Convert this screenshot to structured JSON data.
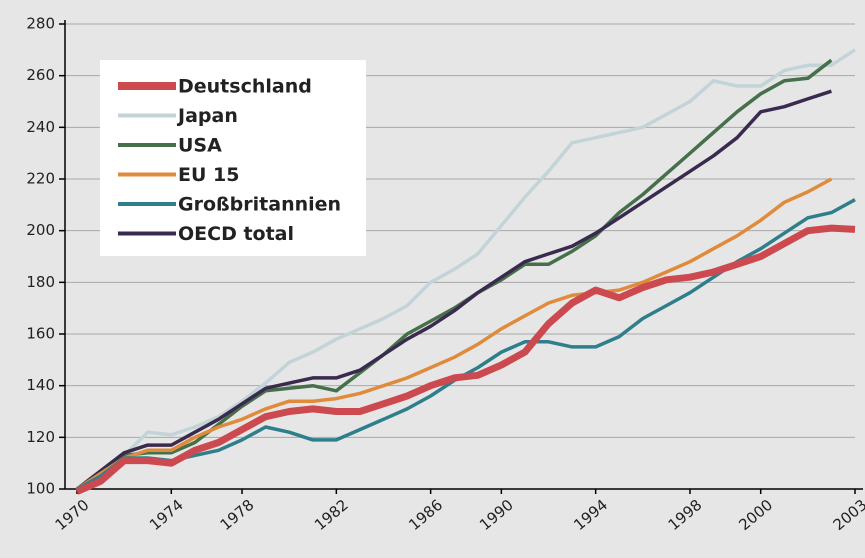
{
  "chart_data": {
    "type": "line",
    "categories": [
      "1970",
      null,
      null,
      null,
      "1974",
      null,
      null,
      "1978",
      null,
      null,
      null,
      "1982",
      null,
      null,
      null,
      "1986",
      null,
      null,
      "1990",
      null,
      null,
      null,
      "1994",
      null,
      null,
      null,
      "1998",
      null,
      null,
      "2000",
      null,
      null,
      null,
      "2003"
    ],
    "ylim": [
      100,
      280
    ],
    "yticks": [
      100,
      120,
      140,
      160,
      180,
      200,
      220,
      240,
      260,
      280
    ],
    "grid": true,
    "legend": "upper left",
    "series": [
      {
        "name": "Deutschland",
        "color": "#cc4a4f",
        "values": [
          99,
          103,
          111,
          111,
          110,
          115,
          118,
          123,
          128,
          130,
          131,
          130,
          130,
          133,
          136,
          140,
          143,
          144,
          148,
          153,
          164,
          172,
          177,
          174,
          178,
          181,
          182,
          184,
          187,
          190,
          195,
          200,
          201,
          200.5
        ]
      },
      {
        "name": "Japan",
        "color": "#c3d4d8",
        "values": [
          100,
          106,
          113,
          122,
          121,
          124,
          128,
          134,
          141,
          149,
          153,
          158,
          162,
          166,
          171,
          180,
          185,
          191,
          202,
          213,
          223,
          234,
          236,
          238,
          240,
          245,
          250,
          258,
          256,
          256,
          262,
          264,
          264,
          270
        ]
      },
      {
        "name": "USA",
        "color": "#46704a",
        "values": [
          100,
          106,
          113,
          114,
          114,
          118,
          125,
          132,
          138,
          139,
          140,
          138,
          145,
          152,
          160,
          165,
          170,
          176,
          181,
          187,
          187,
          192,
          198,
          207,
          214,
          222,
          230,
          238,
          246,
          253,
          258,
          259,
          266,
          null
        ]
      },
      {
        "name": "EU 15",
        "color": "#e08b3b",
        "values": [
          100,
          106,
          112,
          115,
          115,
          120,
          124,
          127,
          131,
          134,
          134,
          135,
          137,
          140,
          143,
          147,
          151,
          156,
          162,
          167,
          172,
          175,
          176,
          177,
          180,
          184,
          188,
          193,
          198,
          204,
          211,
          215,
          220,
          null
        ]
      },
      {
        "name": "Großbritannien",
        "color": "#2e7f8b",
        "values": [
          100,
          105,
          112,
          112,
          111,
          113,
          115,
          119,
          124,
          122,
          119,
          119,
          123,
          127,
          131,
          136,
          142,
          147,
          153,
          157,
          157,
          155,
          155,
          159,
          166,
          171,
          176,
          182,
          188,
          193,
          199,
          205,
          207,
          212
        ]
      },
      {
        "name": "OECD total",
        "color": "#3b2a4f",
        "values": [
          100,
          107,
          114,
          117,
          117,
          122,
          127,
          133,
          139,
          141,
          143,
          143,
          146,
          152,
          158,
          163,
          169,
          176,
          182,
          188,
          191,
          194,
          199,
          205,
          211,
          217,
          223,
          229,
          236,
          246,
          248,
          251,
          254,
          null
        ]
      }
    ]
  }
}
